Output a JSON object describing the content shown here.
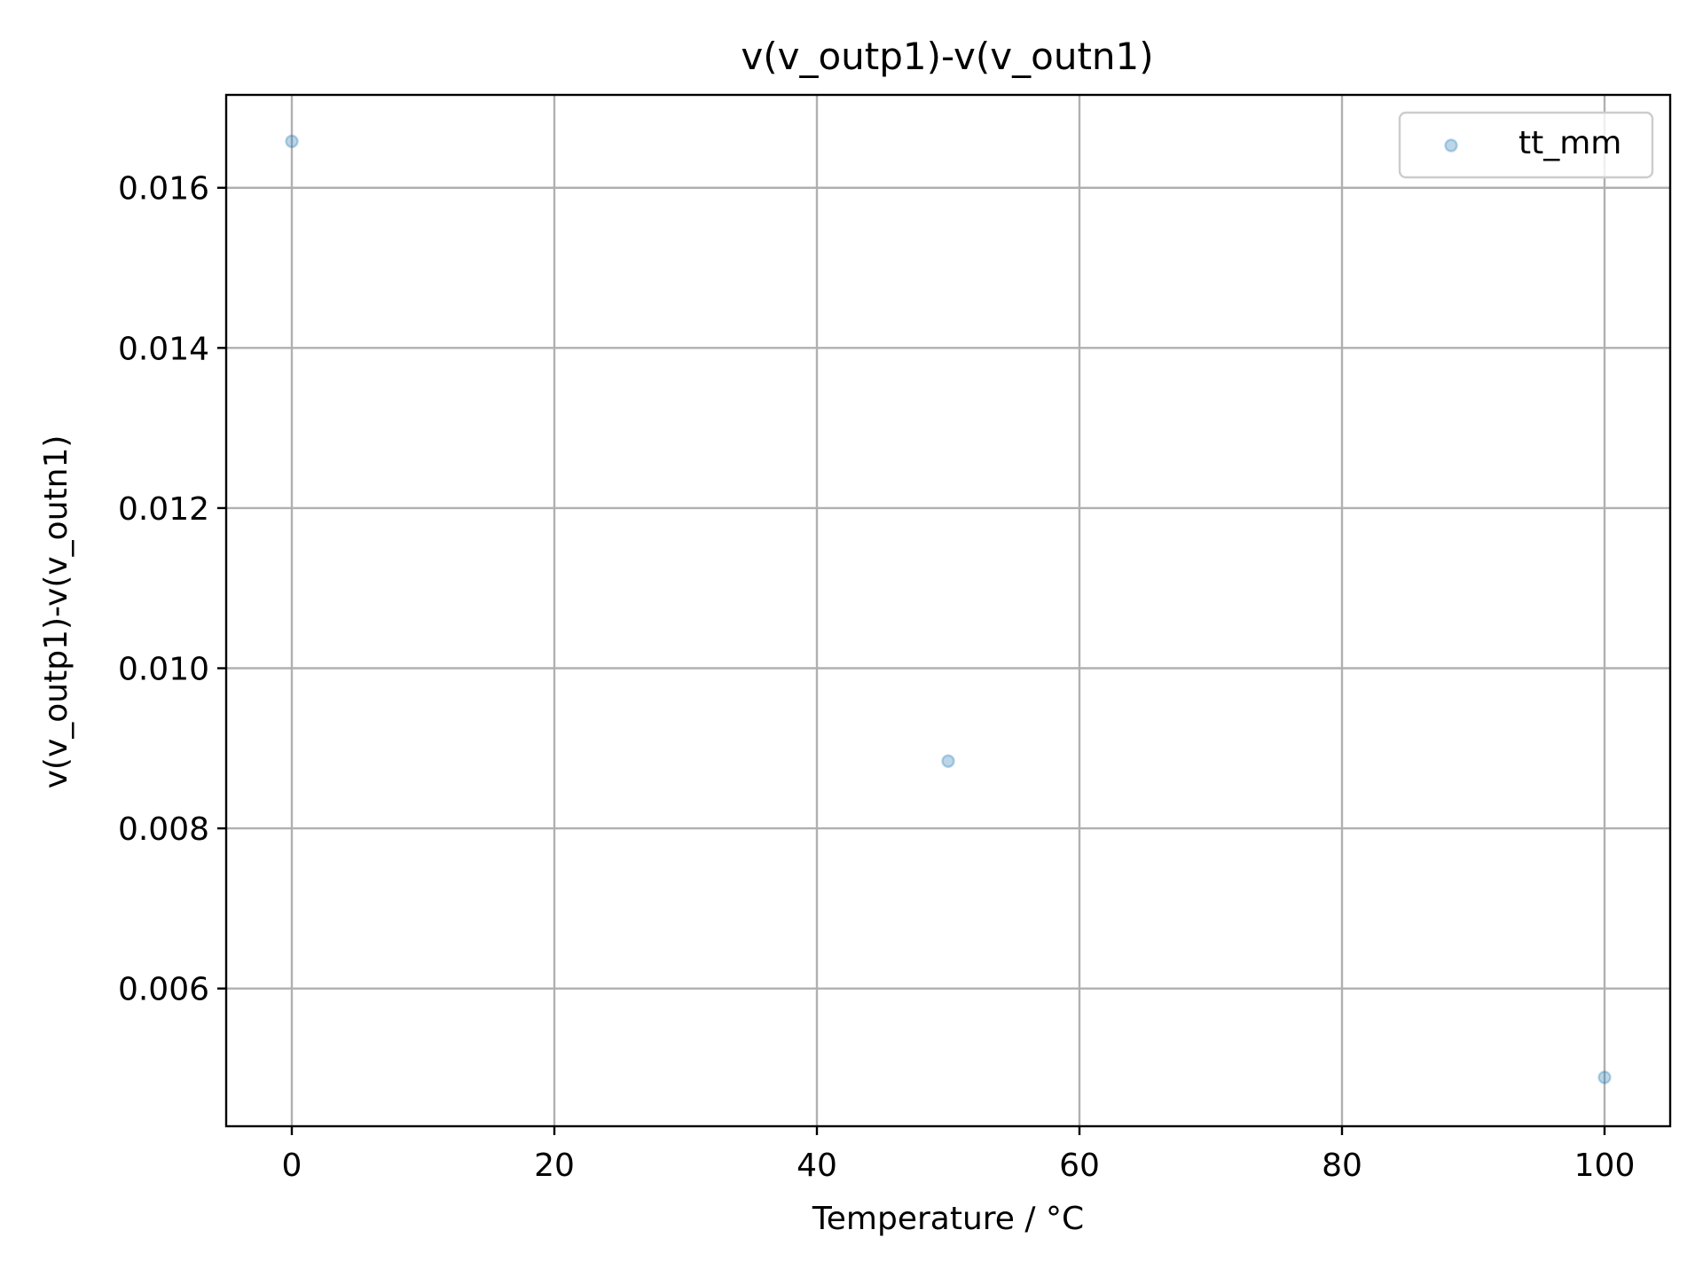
{
  "chart_data": {
    "type": "scatter",
    "title": "v(v_outp1)-v(v_outn1)",
    "xlabel": "Temperature / °C",
    "ylabel": "v(v_outp1)-v(v_outn1)",
    "xlim": [
      -5,
      105
    ],
    "ylim": [
      0.00428,
      0.01716
    ],
    "x_ticks": [
      0,
      20,
      40,
      60,
      80,
      100
    ],
    "x_tick_labels": [
      "0",
      "20",
      "40",
      "60",
      "80",
      "100"
    ],
    "y_ticks": [
      0.006,
      0.008,
      0.01,
      0.012,
      0.014,
      0.016
    ],
    "y_tick_labels": [
      "0.006",
      "0.008",
      "0.010",
      "0.012",
      "0.014",
      "0.016"
    ],
    "grid": true,
    "legend_position": "top-right",
    "series": [
      {
        "name": "tt_mm",
        "color": "#1f77b4",
        "x": [
          0,
          50,
          100
        ],
        "y": [
          0.01658,
          0.00884,
          0.00489
        ]
      }
    ]
  }
}
